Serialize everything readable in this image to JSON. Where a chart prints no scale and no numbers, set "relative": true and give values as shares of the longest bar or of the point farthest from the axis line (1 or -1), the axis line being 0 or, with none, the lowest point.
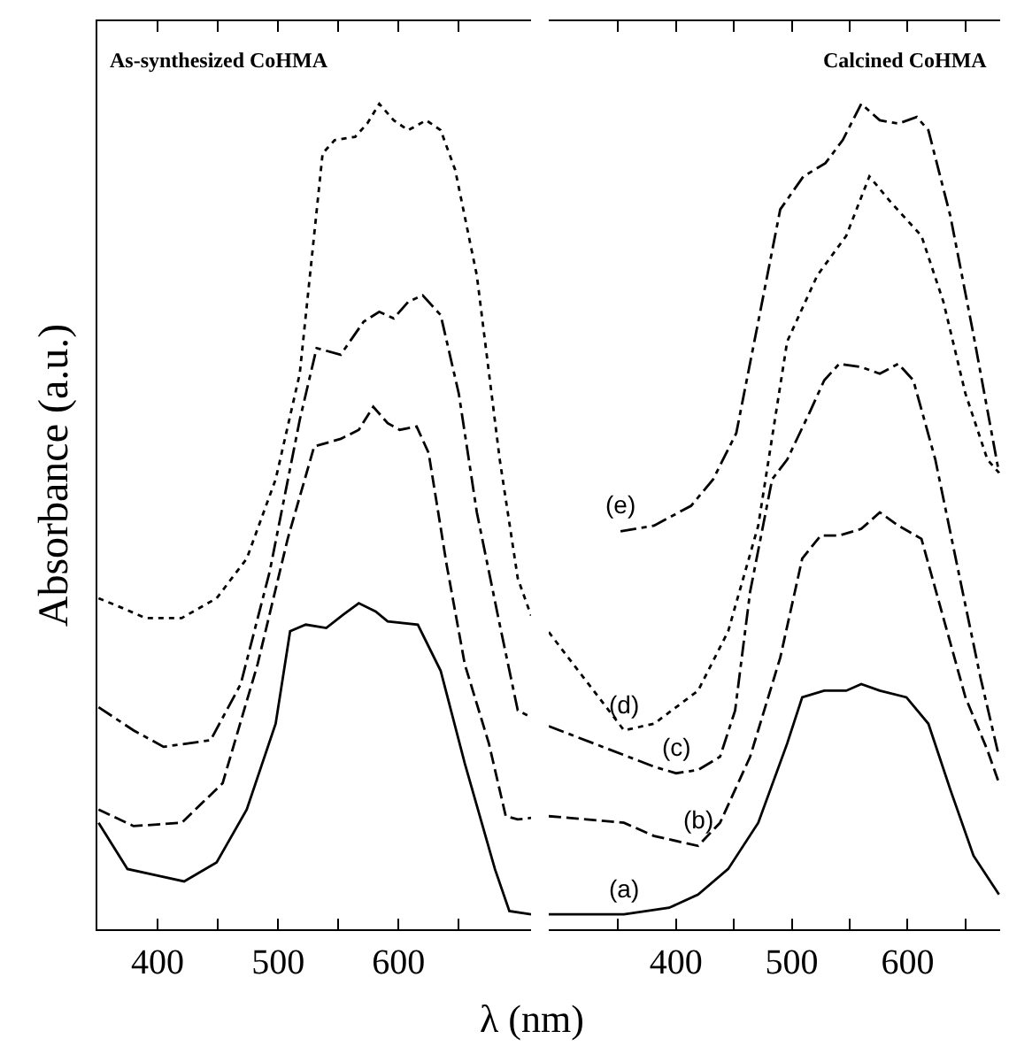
{
  "chart_data": [
    {
      "type": "line",
      "relative": true,
      "ylabel": "Absorbance (a.u.)",
      "xlabel": "λ (nm)",
      "tick_labels": "x",
      "xlim": [
        350,
        710
      ],
      "xticks": [
        400,
        {
          "value": 450,
          "label": null
        },
        500,
        {
          "value": 550,
          "label": null
        },
        600,
        {
          "value": 650,
          "label": null
        }
      ],
      "annotations": [
        "As-synthesized CoHMA"
      ],
      "series": [
        {
          "color": "#000000",
          "line_style": "solid",
          "x": [
            351,
            375,
            400,
            422,
            449,
            474,
            498,
            510,
            523,
            540,
            554,
            567,
            581,
            591,
            616,
            635,
            655,
            680,
            692,
            710
          ],
          "values": [
            0.129,
            0.073,
            0.065,
            0.058,
            0.081,
            0.145,
            0.249,
            0.361,
            0.369,
            0.365,
            0.381,
            0.395,
            0.385,
            0.373,
            0.369,
            0.313,
            0.201,
            0.073,
            0.022,
            0.018
          ]
        },
        {
          "color": "#000000",
          "line_style": "dashed",
          "x": [
            351,
            380,
            420,
            454,
            483,
            508,
            530,
            552,
            567,
            579,
            591,
            601,
            615,
            625,
            640,
            655,
            675,
            689,
            699,
            710
          ],
          "values": [
            0.145,
            0.125,
            0.129,
            0.177,
            0.321,
            0.473,
            0.585,
            0.594,
            0.605,
            0.633,
            0.613,
            0.605,
            0.609,
            0.577,
            0.441,
            0.321,
            0.225,
            0.137,
            0.133,
            0.135
          ]
        },
        {
          "color": "#000000",
          "line_style": "dashdot",
          "x": [
            351,
            380,
            405,
            444,
            469,
            493,
            518,
            532,
            552,
            571,
            584,
            596,
            608,
            620,
            635,
            650,
            665,
            684,
            699,
            710
          ],
          "values": [
            0.269,
            0.241,
            0.221,
            0.229,
            0.297,
            0.433,
            0.617,
            0.704,
            0.696,
            0.736,
            0.748,
            0.74,
            0.76,
            0.768,
            0.744,
            0.649,
            0.505,
            0.369,
            0.265,
            0.257
          ]
        },
        {
          "color": "#000000",
          "line_style": "dotted",
          "x": [
            351,
            371,
            390,
            420,
            449,
            474,
            498,
            518,
            537,
            547,
            564,
            574,
            584,
            596,
            608,
            623,
            635,
            647,
            665,
            684,
            699,
            710
          ],
          "values": [
            0.401,
            0.389,
            0.377,
            0.377,
            0.401,
            0.449,
            0.545,
            0.673,
            0.94,
            0.956,
            0.96,
            0.976,
            1.0,
            0.98,
            0.968,
            0.98,
            0.968,
            0.92,
            0.792,
            0.569,
            0.425,
            0.38
          ]
        }
      ]
    },
    {
      "type": "line",
      "relative": true,
      "tick_labels": "x",
      "xlim": [
        290,
        680
      ],
      "xticks": [
        {
          "value": 350,
          "label": null
        },
        400,
        {
          "value": 450,
          "label": null
        },
        500,
        {
          "value": 550,
          "label": null
        },
        600,
        {
          "value": 650,
          "label": null
        }
      ],
      "annotations": [
        "Calcined CoHMA"
      ],
      "series": [
        {
          "name": "(a)",
          "color": "#000000",
          "line_style": "solid",
          "x": [
            290,
            355,
            394,
            419,
            445,
            471,
            496,
            509,
            528,
            547,
            560,
            576,
            599,
            618,
            637,
            657,
            679
          ],
          "values": [
            0.018,
            0.018,
            0.026,
            0.042,
            0.073,
            0.129,
            0.225,
            0.281,
            0.289,
            0.289,
            0.297,
            0.289,
            0.281,
            0.249,
            0.169,
            0.089,
            0.042
          ]
        },
        {
          "name": "(b)",
          "color": "#000000",
          "line_style": "dashed",
          "x": [
            290,
            355,
            381,
            419,
            438,
            464,
            490,
            509,
            525,
            541,
            560,
            576,
            592,
            612,
            631,
            650,
            669,
            679
          ],
          "values": [
            0.137,
            0.129,
            0.113,
            0.101,
            0.129,
            0.209,
            0.329,
            0.449,
            0.477,
            0.477,
            0.485,
            0.505,
            0.489,
            0.473,
            0.377,
            0.281,
            0.217,
            0.177
          ]
        },
        {
          "name": "(c)",
          "color": "#000000",
          "line_style": "dashdot",
          "x": [
            290,
            381,
            400,
            419,
            438,
            451,
            464,
            483,
            496,
            515,
            528,
            541,
            560,
            576,
            592,
            605,
            624,
            644,
            663,
            679
          ],
          "values": [
            0.246,
            0.197,
            0.189,
            0.193,
            0.209,
            0.265,
            0.409,
            0.545,
            0.569,
            0.625,
            0.665,
            0.685,
            0.681,
            0.673,
            0.685,
            0.665,
            0.569,
            0.433,
            0.305,
            0.209
          ]
        },
        {
          "name": "(d)",
          "color": "#000000",
          "line_style": "dotted",
          "x": [
            290,
            355,
            381,
            419,
            445,
            471,
            496,
            522,
            547,
            567,
            586,
            612,
            631,
            650,
            669,
            679
          ],
          "values": [
            0.36,
            0.241,
            0.249,
            0.289,
            0.361,
            0.489,
            0.712,
            0.792,
            0.84,
            0.912,
            0.88,
            0.84,
            0.76,
            0.649,
            0.569,
            0.553
          ]
        },
        {
          "name": "(e)",
          "color": "#000000",
          "line_style": "dashdot",
          "x": [
            352,
            381,
            413,
            432,
            452,
            471,
            490,
            510,
            529,
            544,
            560,
            576,
            592,
            608,
            618,
            637,
            657,
            679
          ],
          "values": [
            0.482,
            0.489,
            0.513,
            0.545,
            0.601,
            0.736,
            0.872,
            0.912,
            0.928,
            0.956,
            1.0,
            0.98,
            0.976,
            0.984,
            0.968,
            0.864,
            0.72,
            0.553
          ]
        }
      ]
    }
  ]
}
